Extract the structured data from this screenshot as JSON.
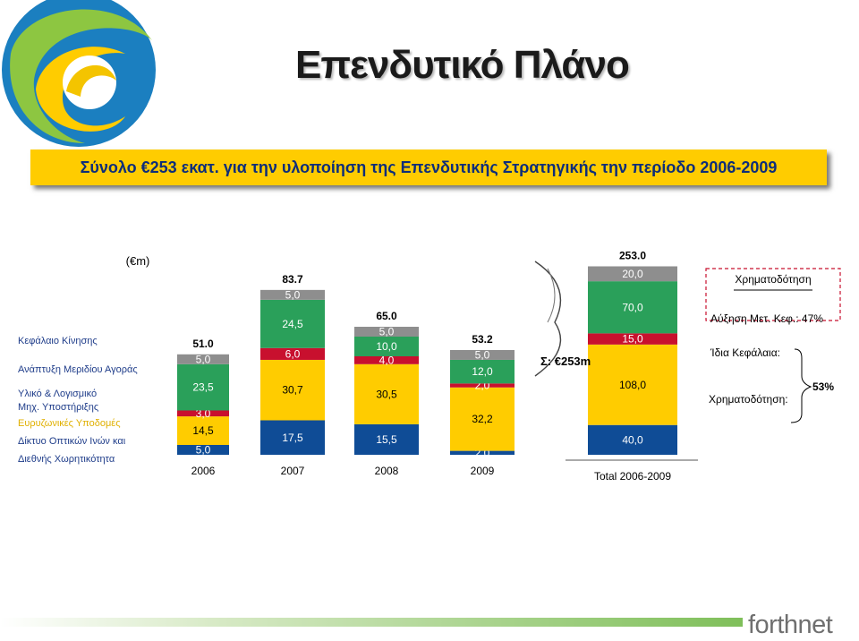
{
  "slide": {
    "title": "Επενδυτικό Πλάνο",
    "subtitle": "Σύνολο €253 εκατ. για την υλοποίηση της Επενδυτικής Στρατηγικής την περίοδο 2006-2009",
    "brand": "forthnet"
  },
  "colors": {
    "cat_kinisis": "#8e8e8e",
    "cat_anaptyxi": "#2aa05a",
    "cat_yliko": "#c8102e",
    "cat_evryzonikes": "#ffcc00",
    "cat_diktyo": "#0f4c96",
    "label_blue": "#1f3d8a",
    "label_yellow": "#e0b000",
    "banner": "#ffcc00"
  },
  "chart_data": {
    "type": "bar",
    "stacked": true,
    "unit_label": "(€m)",
    "categories": [
      "2006",
      "2007",
      "2008",
      "2009",
      "Total 2006-2009"
    ],
    "totals": [
      "51.0",
      "83.7",
      "65.0",
      "53.2",
      "253.0"
    ],
    "series": [
      {
        "name": "Δίκτυο Οπτικών Ινών και Διεθνής Χωρητικότητα",
        "values": [
          5.0,
          17.5,
          15.5,
          2.0,
          40.0
        ],
        "labels": [
          "5,0",
          "17,5",
          "15,5",
          "2,0",
          "40,0"
        ],
        "color_key": "cat_diktyo"
      },
      {
        "name": "Ευρυζωνικές Υποδομές",
        "values": [
          14.5,
          30.7,
          30.5,
          32.2,
          108.0
        ],
        "labels": [
          "14,5",
          "30,7",
          "30,5",
          "32,2",
          "108,0"
        ],
        "color_key": "cat_evryzonikes"
      },
      {
        "name": "Υλικό & Λογισμικό Μηχ. Υποστήριξης",
        "values": [
          3.0,
          6.0,
          4.0,
          2.0,
          15.0
        ],
        "labels": [
          "3,0",
          "6,0",
          "4,0",
          "2,0",
          "15,0"
        ],
        "color_key": "cat_yliko"
      },
      {
        "name": "Ανάπτυξη Μεριδίου Αγοράς",
        "values": [
          23.5,
          24.5,
          10.0,
          12.0,
          70.0
        ],
        "labels": [
          "23,5",
          "24,5",
          "10,0",
          "12,0",
          "70,0"
        ],
        "color_key": "cat_anaptyxi"
      },
      {
        "name": "Κεφάλαιο Κίνησης",
        "values": [
          5.0,
          5.0,
          5.0,
          5.0,
          20.0
        ],
        "labels": [
          "5,0",
          "5,0",
          "5,0",
          "5,0",
          "20,0"
        ],
        "color_key": "cat_kinisis"
      }
    ],
    "legend_lines": [
      {
        "text": "Κεφάλαιο Κίνησης",
        "color_key": "label_blue"
      },
      {
        "text": "Ανάπτυξη Μεριδίου Αγοράς",
        "color_key": "label_blue"
      },
      {
        "text": "Υλικό & Λογισμικό",
        "color_key": "label_blue"
      },
      {
        "text": "Μηχ. Υποστήριξης",
        "color_key": "label_blue"
      },
      {
        "text": "Ευρυζωνικές Υποδομές",
        "color_key": "label_yellow"
      },
      {
        "text": "Δίκτυο Οπτικών Ινών και",
        "color_key": "label_blue"
      },
      {
        "text": "Διεθνής Χωρητικότητα",
        "color_key": "label_blue"
      }
    ],
    "sum_annotation": "Σ: €253m",
    "funding": {
      "header": "Χρηματοδότηση",
      "capital_increase": "Αύξηση Μετ. Κεφ.: 47%",
      "own_funds": "Ίδια Κεφάλαια:",
      "financing": "Χρηματοδότηση:",
      "combined_share": "53%"
    }
  }
}
